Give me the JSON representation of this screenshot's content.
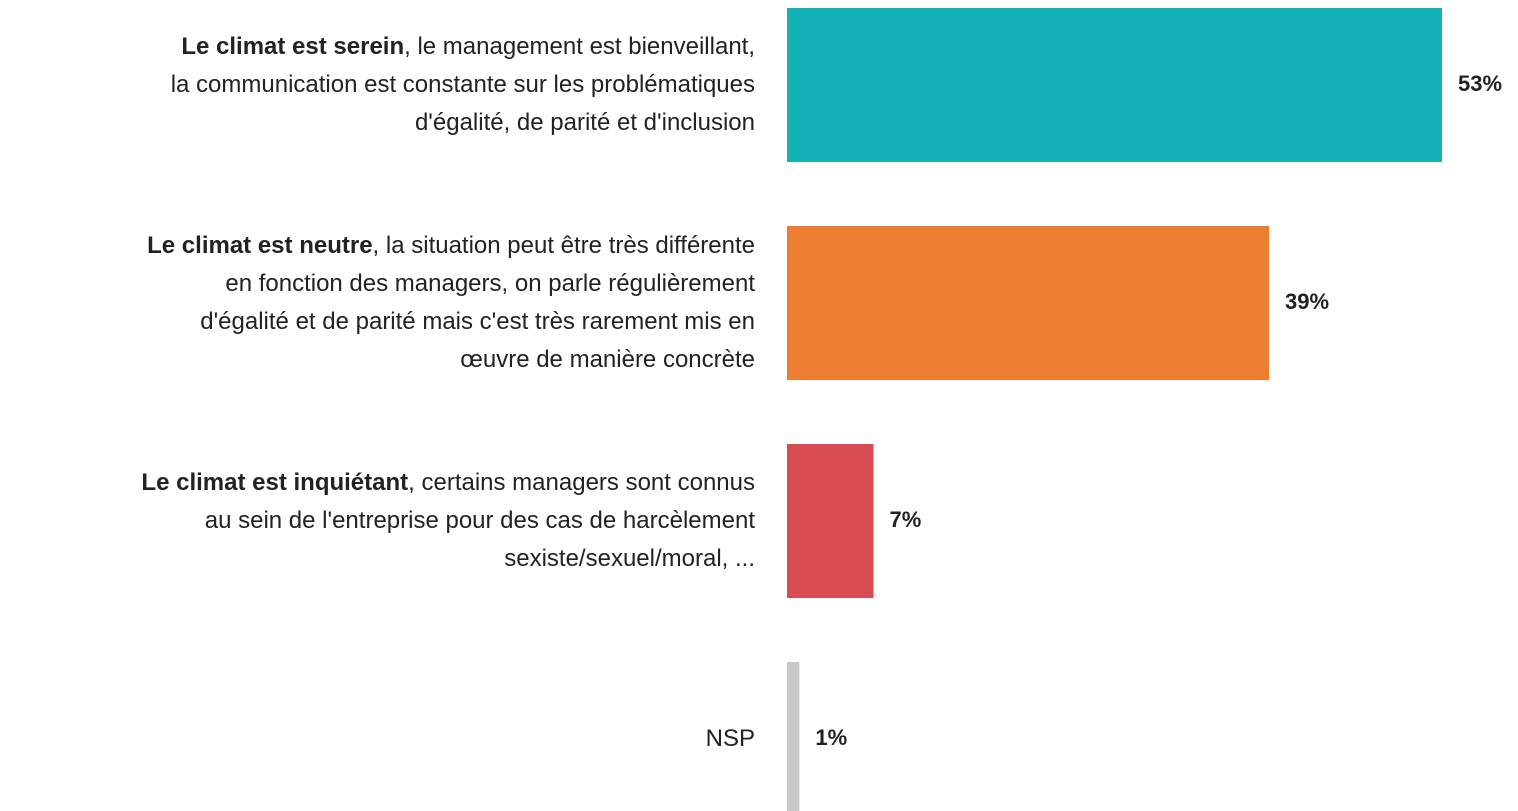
{
  "chart_data": {
    "type": "bar",
    "orientation": "horizontal",
    "categories": [
      {
        "bold": "Le climat est serein",
        "text": ", le management est bienveillant,\nla communication est constante sur les problématiques\nd'égalité, de parité et d'inclusion"
      },
      {
        "bold": "Le climat est neutre",
        "text": ", la situation peut être très différente\nen fonction des managers, on parle régulièrement\nd'égalité et de parité mais c'est très rarement mis en\nœuvre de manière concrète"
      },
      {
        "bold": "Le climat est inquiétant",
        "text": ", certains managers sont connus\nau sein de l'entreprise pour des cas de harcèlement\nsexiste/sexuel/moral, ..."
      },
      {
        "bold": "",
        "text": "NSP"
      }
    ],
    "values": [
      53,
      39,
      7,
      1
    ],
    "value_labels": [
      "53%",
      "39%",
      "7%",
      "1%"
    ],
    "colors": [
      "#14b1b8",
      "#ed7d31",
      "#d94b52",
      "#c8c8c8"
    ]
  }
}
